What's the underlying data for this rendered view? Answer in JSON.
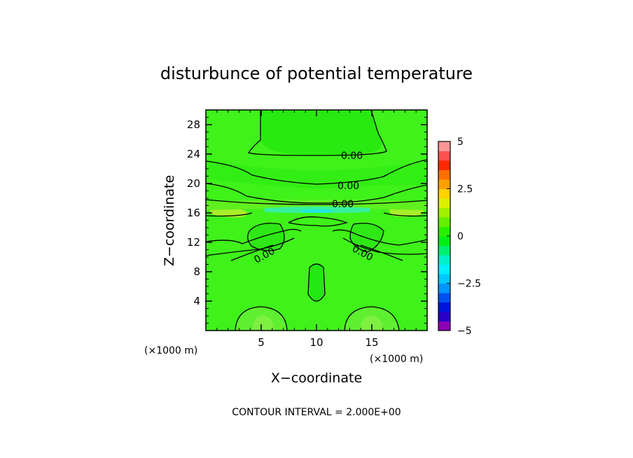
{
  "chart_data": {
    "type": "heatmap",
    "title": "disturbunce of potential temperature",
    "xlabel": "X−coordinate",
    "ylabel": "Z−coordinate",
    "x_unit_label": "(×1000 m)",
    "y_unit_label": "(×1000 m)",
    "xlim": [
      0,
      20
    ],
    "ylim": [
      0,
      30
    ],
    "xticks": [
      5,
      10,
      15
    ],
    "yticks": [
      4,
      8,
      12,
      16,
      20,
      24,
      28
    ],
    "footer": "CONTOUR INTERVAL = 2.000E+00",
    "contour_label": "0.00",
    "contour_label_values": [
      0,
      0,
      0,
      0,
      0
    ],
    "colorbar": {
      "range": [
        -5,
        5
      ],
      "tick_values": [
        5,
        2.5,
        0,
        -2.5,
        -5
      ],
      "tick_labels": [
        "5",
        "2.5",
        "0",
        "−2.5",
        "−5"
      ],
      "colors": [
        "#8c00b4",
        "#2800c8",
        "#0014dc",
        "#0050f0",
        "#0096ff",
        "#00c8ff",
        "#00f0ff",
        "#00f0c8",
        "#00f06e",
        "#00f014",
        "#28f000",
        "#64f000",
        "#a0f000",
        "#dcf000",
        "#ffd200",
        "#ffa000",
        "#ff6e00",
        "#ff2800",
        "#ff5050",
        "#ff9696"
      ]
    },
    "background_value": 0.5
  }
}
